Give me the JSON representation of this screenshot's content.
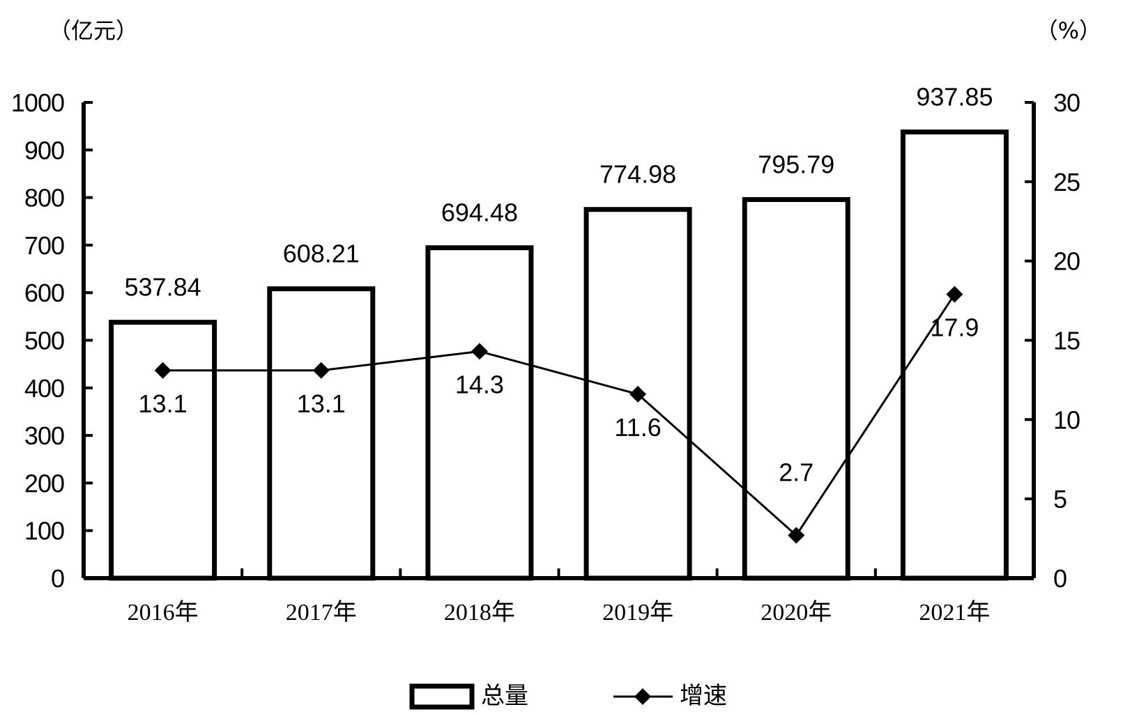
{
  "chart_data": {
    "type": "bar",
    "categories": [
      "2016年",
      "2017年",
      "2018年",
      "2019年",
      "2020年",
      "2021年"
    ],
    "series": [
      {
        "name": "总量",
        "type": "bar",
        "axis": "left",
        "values": [
          537.84,
          608.21,
          694.48,
          774.98,
          795.79,
          937.85
        ]
      },
      {
        "name": "增速",
        "type": "line",
        "axis": "right",
        "marker": "diamond",
        "values": [
          13.1,
          13.1,
          14.3,
          11.6,
          2.7,
          17.9
        ]
      }
    ],
    "y_left": {
      "unit": "（亿元）",
      "lim": [
        0,
        1000
      ],
      "ticks": [
        "0",
        "100",
        "200",
        "300",
        "400",
        "500",
        "600",
        "700",
        "800",
        "900",
        "1000"
      ]
    },
    "y_right": {
      "unit": "（%）",
      "lim": [
        0,
        30
      ],
      "ticks": [
        "0",
        "5",
        "10",
        "15",
        "20",
        "25",
        "30"
      ]
    },
    "legend": {
      "position": "bottom"
    },
    "grid": false,
    "colors": {
      "bar_fill": "#ffffff",
      "bar_stroke": "#000000",
      "line": "#000000"
    }
  }
}
